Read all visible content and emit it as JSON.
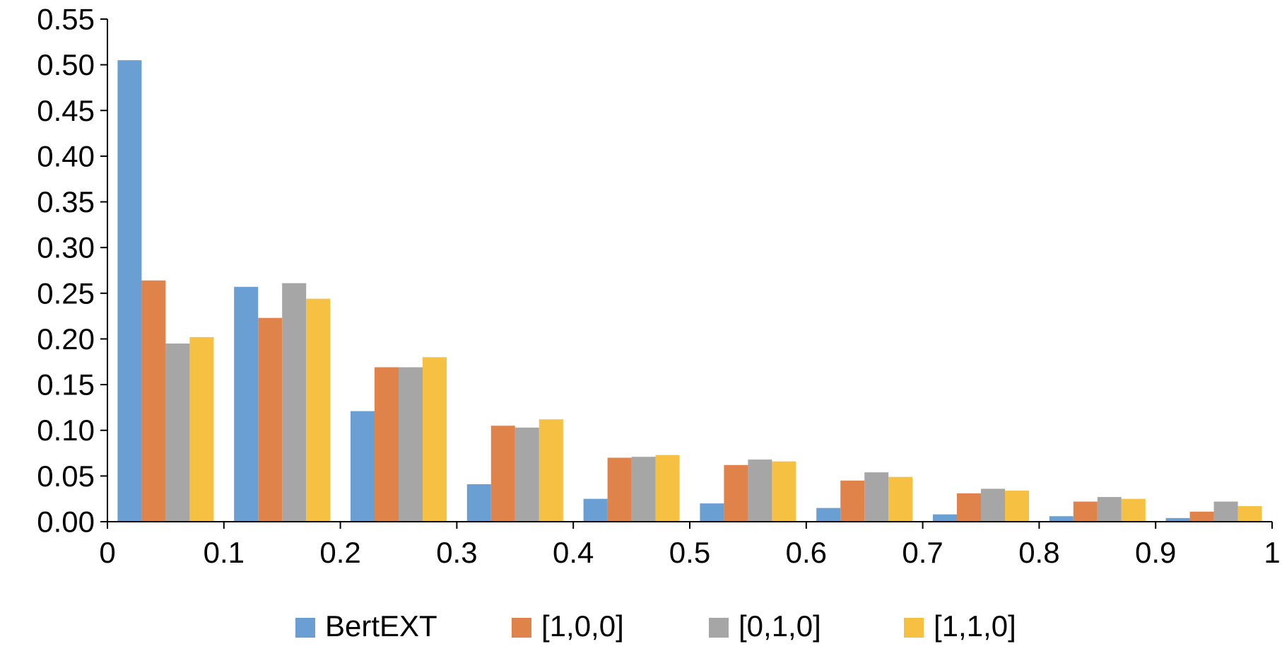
{
  "chart_data": {
    "type": "bar",
    "title": "",
    "xlabel": "",
    "ylabel": "",
    "grid": false,
    "legend_position": "bottom",
    "xlim": [
      0,
      1
    ],
    "ylim": [
      0,
      0.55
    ],
    "x_ticks": [
      "0",
      "0.1",
      "0.2",
      "0.3",
      "0.4",
      "0.5",
      "0.6",
      "0.7",
      "0.8",
      "0.9",
      "1"
    ],
    "y_ticks": [
      "0.00",
      "0.05",
      "0.10",
      "0.15",
      "0.20",
      "0.25",
      "0.30",
      "0.35",
      "0.40",
      "0.45",
      "0.50",
      "0.55"
    ],
    "bins": [
      [
        0.0,
        0.1
      ],
      [
        0.1,
        0.2
      ],
      [
        0.2,
        0.3
      ],
      [
        0.3,
        0.4
      ],
      [
        0.4,
        0.5
      ],
      [
        0.5,
        0.6
      ],
      [
        0.6,
        0.7
      ],
      [
        0.7,
        0.8
      ],
      [
        0.8,
        0.9
      ],
      [
        0.9,
        1.0
      ]
    ],
    "series": [
      {
        "name": "BertEXT",
        "color": "#6a9fd4",
        "values": [
          0.505,
          0.257,
          0.121,
          0.041,
          0.025,
          0.02,
          0.015,
          0.008,
          0.006,
          0.004
        ]
      },
      {
        "name": "[1,0,0]",
        "color": "#e0834a",
        "values": [
          0.264,
          0.223,
          0.169,
          0.105,
          0.07,
          0.062,
          0.045,
          0.031,
          0.022,
          0.011
        ]
      },
      {
        "name": "[0,1,0]",
        "color": "#a6a6a6",
        "values": [
          0.195,
          0.261,
          0.169,
          0.103,
          0.071,
          0.068,
          0.054,
          0.036,
          0.027,
          0.022
        ]
      },
      {
        "name": "[1,1,0]",
        "color": "#f6c143",
        "values": [
          0.202,
          0.244,
          0.18,
          0.112,
          0.073,
          0.066,
          0.049,
          0.034,
          0.025,
          0.017
        ]
      }
    ]
  }
}
